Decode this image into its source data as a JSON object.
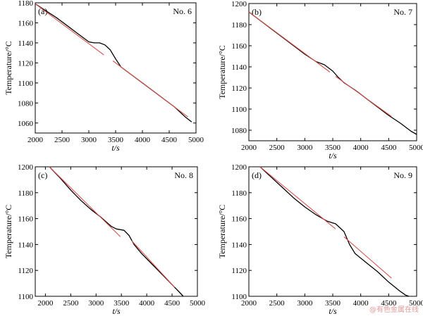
{
  "watermark": "@有色金属在线",
  "colors": {
    "curve": "#000000",
    "fit": "#d9534f",
    "axis": "#000000"
  },
  "chart_data": [
    {
      "type": "line",
      "panel": "(a)",
      "label": "No. 6",
      "xlabel": "t/s",
      "ylabel": "Temperature/°C",
      "xlim": [
        2000,
        5000
      ],
      "ylim": [
        1050,
        1180
      ],
      "xticks": [
        2000,
        2500,
        3000,
        3500,
        4000,
        4500,
        5000
      ],
      "yticks": [
        1060,
        1080,
        1100,
        1120,
        1140,
        1160,
        1180
      ],
      "series": [
        {
          "role": "measured",
          "points": [
            [
              2000,
              1179
            ],
            [
              2200,
              1172
            ],
            [
              2400,
              1165
            ],
            [
              2600,
              1157
            ],
            [
              2800,
              1149
            ],
            [
              3000,
              1141
            ],
            [
              3100,
              1140
            ],
            [
              3200,
              1140
            ],
            [
              3300,
              1138
            ],
            [
              3400,
              1133
            ],
            [
              3500,
              1124
            ],
            [
              3600,
              1116
            ],
            [
              3800,
              1108
            ],
            [
              4000,
              1100
            ],
            [
              4200,
              1092
            ],
            [
              4400,
              1084
            ],
            [
              4600,
              1076
            ],
            [
              4800,
              1066
            ],
            [
              4920,
              1061
            ]
          ]
        },
        {
          "role": "fit",
          "points": [
            [
              2000,
              1179
            ],
            [
              3280,
              1128
            ]
          ]
        },
        {
          "role": "fit",
          "points": [
            [
              3450,
              1122
            ],
            [
              4850,
              1066
            ]
          ]
        }
      ]
    },
    {
      "type": "line",
      "panel": "(b)",
      "label": "No. 7",
      "xlabel": "t/s",
      "ylabel": "Temperature/°C",
      "xlim": [
        2000,
        5000
      ],
      "ylim": [
        1070,
        1200
      ],
      "xticks": [
        2000,
        2500,
        3000,
        3500,
        4000,
        4500,
        5000
      ],
      "yticks": [
        1080,
        1100,
        1120,
        1140,
        1160,
        1180,
        1200
      ],
      "series": [
        {
          "role": "measured",
          "points": [
            [
              2000,
              1192
            ],
            [
              2200,
              1184
            ],
            [
              2400,
              1176
            ],
            [
              2600,
              1168
            ],
            [
              2800,
              1160
            ],
            [
              3000,
              1152
            ],
            [
              3200,
              1145
            ],
            [
              3350,
              1142
            ],
            [
              3500,
              1136
            ],
            [
              3600,
              1130
            ],
            [
              3700,
              1125
            ],
            [
              3900,
              1118
            ],
            [
              4100,
              1110
            ],
            [
              4300,
              1102
            ],
            [
              4500,
              1094
            ],
            [
              4700,
              1087
            ],
            [
              4900,
              1079
            ],
            [
              5000,
              1076
            ]
          ]
        },
        {
          "role": "fit",
          "points": [
            [
              2000,
              1192
            ],
            [
              3450,
              1135
            ]
          ]
        },
        {
          "role": "fit",
          "points": [
            [
              3550,
              1131
            ],
            [
              4550,
              1093
            ]
          ]
        }
      ]
    },
    {
      "type": "line",
      "panel": "(c)",
      "label": "No. 8",
      "xlabel": "t/s",
      "ylabel": "Temperature/°C",
      "xlim": [
        1800,
        5000
      ],
      "ylim": [
        1100,
        1200
      ],
      "xticks": [
        2000,
        2500,
        3000,
        3500,
        4000,
        4500,
        5000
      ],
      "yticks": [
        1100,
        1120,
        1140,
        1160,
        1180,
        1200
      ],
      "series": [
        {
          "role": "measured",
          "points": [
            [
              2080,
              1200
            ],
            [
              2300,
              1191
            ],
            [
              2500,
              1182
            ],
            [
              2700,
              1174
            ],
            [
              2900,
              1167
            ],
            [
              3100,
              1161
            ],
            [
              3300,
              1154
            ],
            [
              3400,
              1152
            ],
            [
              3550,
              1151
            ],
            [
              3650,
              1147
            ],
            [
              3750,
              1140
            ],
            [
              3900,
              1133
            ],
            [
              4100,
              1125
            ],
            [
              4300,
              1117
            ],
            [
              4500,
              1109
            ],
            [
              4650,
              1103
            ],
            [
              4720,
              1100
            ]
          ]
        },
        {
          "role": "fit",
          "points": [
            [
              2080,
              1200
            ],
            [
              3480,
              1146
            ]
          ]
        },
        {
          "role": "fit",
          "points": [
            [
              3700,
              1143
            ],
            [
              4550,
              1107
            ]
          ]
        }
      ]
    },
    {
      "type": "line",
      "panel": "(d)",
      "label": "No. 9",
      "xlabel": "t/s",
      "ylabel": "Temperature/°C",
      "xlim": [
        2000,
        5000
      ],
      "ylim": [
        1100,
        1200
      ],
      "xticks": [
        2000,
        2500,
        3000,
        3500,
        4000,
        4500,
        5000
      ],
      "yticks": [
        1100,
        1120,
        1140,
        1160,
        1180,
        1200
      ],
      "series": [
        {
          "role": "measured",
          "points": [
            [
              2200,
              1200
            ],
            [
              2400,
              1192
            ],
            [
              2600,
              1184
            ],
            [
              2800,
              1176
            ],
            [
              3000,
              1169
            ],
            [
              3200,
              1163
            ],
            [
              3400,
              1158
            ],
            [
              3550,
              1156
            ],
            [
              3700,
              1150
            ],
            [
              3800,
              1140
            ],
            [
              3900,
              1133
            ],
            [
              4100,
              1126
            ],
            [
              4300,
              1119
            ],
            [
              4500,
              1111
            ],
            [
              4700,
              1104
            ],
            [
              4800,
              1101
            ],
            [
              4860,
              1100
            ]
          ]
        },
        {
          "role": "fit",
          "points": [
            [
              2200,
              1200
            ],
            [
              3550,
              1152
            ]
          ]
        },
        {
          "role": "fit",
          "points": [
            [
              3700,
              1146
            ],
            [
              4550,
              1114
            ]
          ]
        }
      ]
    }
  ]
}
